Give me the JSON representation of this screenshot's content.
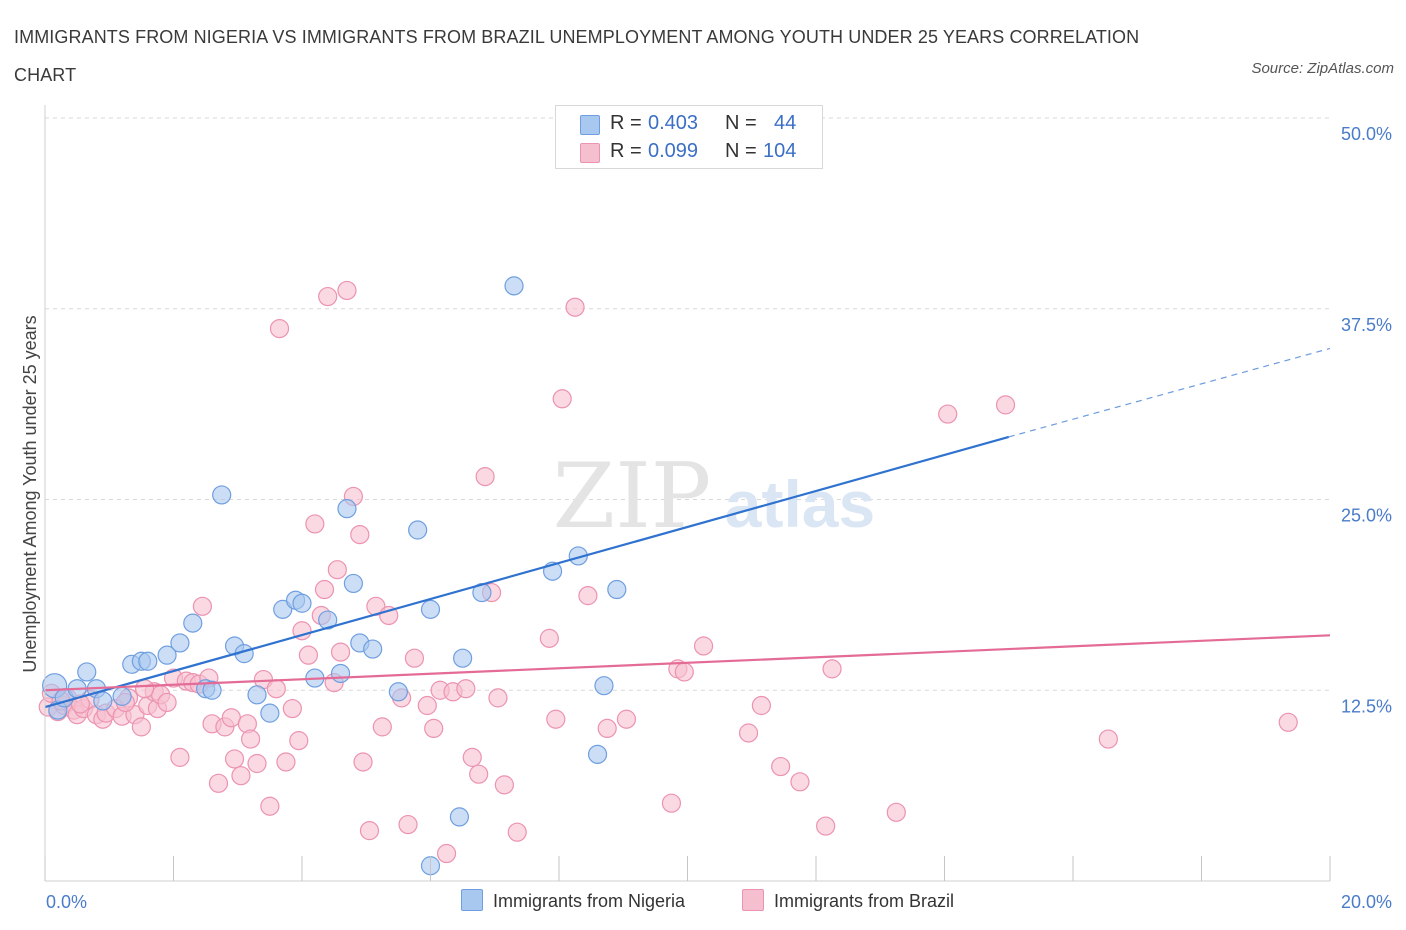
{
  "title": "IMMIGRANTS FROM NIGERIA VS IMMIGRANTS FROM BRAZIL UNEMPLOYMENT AMONG YOUTH UNDER 25 YEARS CORRELATION CHART",
  "source": "Source: ZipAtlas.com",
  "watermark": {
    "zip": "ZIP",
    "atlas": "atlas"
  },
  "legend": {
    "rows": [
      {
        "r_label": "R =",
        "r_value": "0.403",
        "n_label": "N =",
        "n_value": "44"
      },
      {
        "r_label": "R =",
        "r_value": "0.099",
        "n_label": "N =",
        "n_value": "104"
      }
    ]
  },
  "colors": {
    "nigeria_fill": "#a9c8f0",
    "nigeria_stroke": "#6f9fe0",
    "nigeria_line": "#2f72cf",
    "brazil_fill": "#f6bfd0",
    "brazil_stroke": "#ec93b0",
    "brazil_line": "#e36b96",
    "tick_text": "#4a7cc9",
    "grid": "#d8d8d8"
  },
  "chart_data": {
    "type": "scatter",
    "title": "IMMIGRANTS FROM NIGERIA VS IMMIGRANTS FROM BRAZIL UNEMPLOYMENT AMONG YOUTH UNDER 25 YEARS CORRELATION CHART",
    "xlabel": "",
    "ylabel": "Unemployment Among Youth under 25 years",
    "xlim": [
      0,
      20
    ],
    "ylim": [
      0,
      50
    ],
    "x_tick_labels": [
      "0.0%",
      "20.0%"
    ],
    "y_ticks": [
      12.5,
      25,
      37.5,
      50
    ],
    "y_tick_labels": [
      "12.5%",
      "25.0%",
      "37.5%",
      "50.0%"
    ],
    "grid": true,
    "legend_placement": "top-center",
    "series": [
      {
        "name": "Immigrants from Nigeria",
        "R": 0.403,
        "N": 44,
        "trend": {
          "x": [
            0,
            15
          ],
          "y": [
            11.4,
            29.1
          ],
          "dashed_to": [
            20,
            34.9
          ]
        },
        "points": [
          [
            0.15,
            12.8
          ],
          [
            0.2,
            11.2
          ],
          [
            0.3,
            12.0
          ],
          [
            0.5,
            12.6
          ],
          [
            0.65,
            13.7
          ],
          [
            0.8,
            12.6
          ],
          [
            0.9,
            11.8
          ],
          [
            1.35,
            14.2
          ],
          [
            1.5,
            14.4
          ],
          [
            1.6,
            14.4
          ],
          [
            1.9,
            14.8
          ],
          [
            2.1,
            15.6
          ],
          [
            2.3,
            16.9
          ],
          [
            2.5,
            12.6
          ],
          [
            2.6,
            12.5
          ],
          [
            2.75,
            25.3
          ],
          [
            2.95,
            15.4
          ],
          [
            3.1,
            14.9
          ],
          [
            3.3,
            12.2
          ],
          [
            3.5,
            11.0
          ],
          [
            3.7,
            17.8
          ],
          [
            3.9,
            18.4
          ],
          [
            4.0,
            18.2
          ],
          [
            4.2,
            13.3
          ],
          [
            4.4,
            17.1
          ],
          [
            4.6,
            13.6
          ],
          [
            4.7,
            24.4
          ],
          [
            4.8,
            19.5
          ],
          [
            4.9,
            15.6
          ],
          [
            5.1,
            15.2
          ],
          [
            5.5,
            12.4
          ],
          [
            5.8,
            23.0
          ],
          [
            6.0,
            17.8
          ],
          [
            6.0,
            1.0
          ],
          [
            6.45,
            4.2
          ],
          [
            6.5,
            14.6
          ],
          [
            6.8,
            18.9
          ],
          [
            7.3,
            39.0
          ],
          [
            7.9,
            20.3
          ],
          [
            8.3,
            21.3
          ],
          [
            8.6,
            8.3
          ],
          [
            8.7,
            12.8
          ],
          [
            8.9,
            19.1
          ],
          [
            1.2,
            12.1
          ]
        ]
      },
      {
        "name": "Immigrants from Brazil",
        "R": 0.099,
        "N": 104,
        "trend": {
          "x": [
            0,
            20
          ],
          "y": [
            12.5,
            16.1
          ]
        },
        "points": [
          [
            0.05,
            11.4
          ],
          [
            0.1,
            12.3
          ],
          [
            0.2,
            11.1
          ],
          [
            0.3,
            11.5
          ],
          [
            0.35,
            12.0
          ],
          [
            0.45,
            11.2
          ],
          [
            0.5,
            10.9
          ],
          [
            0.6,
            11.3
          ],
          [
            0.7,
            11.9
          ],
          [
            0.8,
            10.9
          ],
          [
            0.9,
            10.6
          ],
          [
            0.95,
            11.0
          ],
          [
            1.1,
            11.3
          ],
          [
            1.2,
            10.8
          ],
          [
            1.3,
            12.0
          ],
          [
            1.4,
            10.9
          ],
          [
            1.5,
            10.1
          ],
          [
            1.6,
            11.5
          ],
          [
            1.7,
            12.4
          ],
          [
            1.75,
            11.3
          ],
          [
            1.8,
            12.2
          ],
          [
            1.9,
            11.7
          ],
          [
            2.0,
            13.3
          ],
          [
            2.1,
            8.1
          ],
          [
            2.2,
            13.1
          ],
          [
            2.3,
            13.0
          ],
          [
            2.4,
            12.9
          ],
          [
            2.45,
            18.0
          ],
          [
            2.55,
            13.3
          ],
          [
            2.6,
            10.3
          ],
          [
            2.7,
            6.4
          ],
          [
            2.8,
            10.1
          ],
          [
            2.9,
            10.7
          ],
          [
            2.95,
            8.0
          ],
          [
            3.05,
            6.9
          ],
          [
            3.15,
            10.3
          ],
          [
            3.2,
            9.3
          ],
          [
            3.3,
            7.7
          ],
          [
            3.4,
            13.2
          ],
          [
            3.5,
            4.9
          ],
          [
            3.6,
            12.6
          ],
          [
            3.65,
            36.2
          ],
          [
            3.75,
            7.8
          ],
          [
            3.85,
            11.3
          ],
          [
            3.95,
            9.2
          ],
          [
            4.0,
            16.4
          ],
          [
            4.1,
            14.8
          ],
          [
            4.2,
            23.4
          ],
          [
            4.3,
            17.4
          ],
          [
            4.35,
            19.1
          ],
          [
            4.4,
            38.3
          ],
          [
            4.5,
            13.0
          ],
          [
            4.55,
            20.4
          ],
          [
            4.6,
            15.0
          ],
          [
            4.7,
            38.7
          ],
          [
            4.8,
            25.2
          ],
          [
            4.9,
            22.7
          ],
          [
            4.95,
            7.8
          ],
          [
            5.05,
            3.3
          ],
          [
            5.15,
            18.0
          ],
          [
            5.25,
            10.1
          ],
          [
            5.35,
            17.4
          ],
          [
            5.55,
            12.0
          ],
          [
            5.65,
            3.7
          ],
          [
            5.75,
            14.6
          ],
          [
            5.95,
            11.5
          ],
          [
            6.05,
            10.0
          ],
          [
            6.15,
            12.5
          ],
          [
            6.25,
            1.8
          ],
          [
            6.35,
            12.4
          ],
          [
            6.55,
            12.6
          ],
          [
            6.65,
            8.1
          ],
          [
            6.75,
            7.0
          ],
          [
            6.85,
            26.5
          ],
          [
            6.95,
            18.9
          ],
          [
            7.05,
            12.0
          ],
          [
            7.15,
            6.3
          ],
          [
            7.35,
            3.2
          ],
          [
            7.85,
            15.9
          ],
          [
            7.95,
            10.6
          ],
          [
            8.05,
            31.6
          ],
          [
            8.25,
            37.6
          ],
          [
            8.45,
            18.7
          ],
          [
            8.75,
            10.0
          ],
          [
            9.05,
            10.6
          ],
          [
            9.75,
            5.1
          ],
          [
            9.85,
            13.9
          ],
          [
            9.95,
            13.7
          ],
          [
            10.25,
            15.4
          ],
          [
            10.95,
            9.7
          ],
          [
            11.15,
            11.5
          ],
          [
            11.45,
            7.5
          ],
          [
            11.75,
            6.5
          ],
          [
            12.15,
            3.6
          ],
          [
            12.25,
            13.9
          ],
          [
            13.25,
            4.5
          ],
          [
            14.05,
            30.6
          ],
          [
            14.95,
            31.2
          ],
          [
            16.55,
            9.3
          ],
          [
            19.35,
            10.4
          ],
          [
            0.25,
            11.8
          ],
          [
            0.55,
            11.6
          ],
          [
            1.25,
            11.7
          ],
          [
            1.55,
            12.6
          ]
        ]
      }
    ]
  }
}
